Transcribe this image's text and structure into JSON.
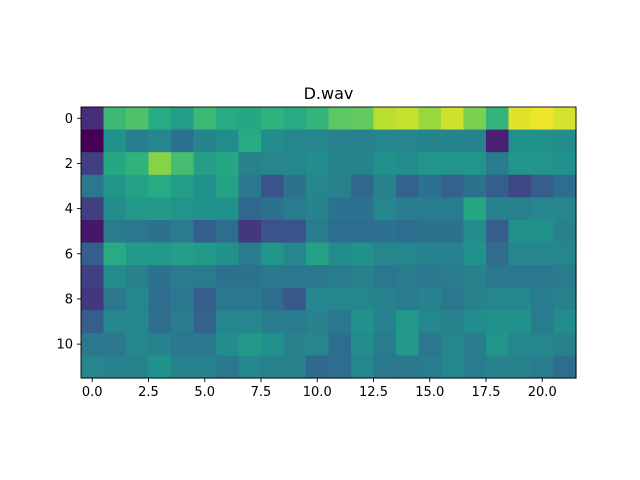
{
  "chart_data": {
    "type": "heatmap",
    "title": "D.wav",
    "xlabel": "",
    "ylabel": "",
    "x_ticks": [
      "0.0",
      "2.5",
      "5.0",
      "7.5",
      "10.0",
      "12.5",
      "15.0",
      "17.5",
      "20.0"
    ],
    "y_ticks": [
      "0",
      "2",
      "4",
      "6",
      "8",
      "10"
    ],
    "xlim": [
      -0.5,
      21.5
    ],
    "ylim": [
      11.5,
      -0.5
    ],
    "colormap": "viridis",
    "vmin": 0,
    "vmax": 1,
    "values": [
      [
        0.15,
        0.68,
        0.72,
        0.62,
        0.55,
        0.68,
        0.62,
        0.6,
        0.65,
        0.62,
        0.66,
        0.75,
        0.76,
        0.9,
        0.92,
        0.85,
        0.93,
        0.8,
        0.66,
        0.96,
        0.98,
        0.94
      ],
      [
        0.0,
        0.5,
        0.42,
        0.46,
        0.38,
        0.45,
        0.48,
        0.62,
        0.48,
        0.46,
        0.46,
        0.44,
        0.44,
        0.46,
        0.46,
        0.45,
        0.45,
        0.44,
        0.12,
        0.5,
        0.5,
        0.48
      ],
      [
        0.2,
        0.6,
        0.65,
        0.82,
        0.7,
        0.56,
        0.6,
        0.44,
        0.46,
        0.46,
        0.48,
        0.45,
        0.45,
        0.5,
        0.48,
        0.52,
        0.52,
        0.52,
        0.42,
        0.52,
        0.52,
        0.5
      ],
      [
        0.4,
        0.52,
        0.58,
        0.62,
        0.56,
        0.5,
        0.58,
        0.4,
        0.26,
        0.38,
        0.46,
        0.44,
        0.34,
        0.44,
        0.32,
        0.38,
        0.32,
        0.38,
        0.3,
        0.22,
        0.3,
        0.36
      ],
      [
        0.2,
        0.48,
        0.54,
        0.54,
        0.52,
        0.5,
        0.5,
        0.34,
        0.38,
        0.42,
        0.44,
        0.38,
        0.38,
        0.46,
        0.42,
        0.42,
        0.42,
        0.6,
        0.44,
        0.44,
        0.46,
        0.46
      ],
      [
        0.08,
        0.42,
        0.4,
        0.38,
        0.42,
        0.3,
        0.36,
        0.18,
        0.26,
        0.26,
        0.42,
        0.36,
        0.36,
        0.38,
        0.36,
        0.38,
        0.38,
        0.48,
        0.3,
        0.5,
        0.5,
        0.44
      ],
      [
        0.3,
        0.62,
        0.54,
        0.54,
        0.56,
        0.54,
        0.5,
        0.42,
        0.52,
        0.46,
        0.58,
        0.48,
        0.5,
        0.46,
        0.46,
        0.44,
        0.44,
        0.5,
        0.36,
        0.46,
        0.46,
        0.46
      ],
      [
        0.2,
        0.48,
        0.44,
        0.38,
        0.42,
        0.42,
        0.38,
        0.38,
        0.4,
        0.4,
        0.4,
        0.42,
        0.44,
        0.4,
        0.42,
        0.4,
        0.42,
        0.44,
        0.4,
        0.4,
        0.4,
        0.42
      ],
      [
        0.18,
        0.4,
        0.46,
        0.36,
        0.4,
        0.3,
        0.4,
        0.4,
        0.36,
        0.28,
        0.46,
        0.46,
        0.46,
        0.44,
        0.42,
        0.44,
        0.4,
        0.44,
        0.46,
        0.46,
        0.42,
        0.44
      ],
      [
        0.3,
        0.46,
        0.46,
        0.36,
        0.42,
        0.32,
        0.46,
        0.46,
        0.42,
        0.42,
        0.44,
        0.4,
        0.5,
        0.44,
        0.54,
        0.46,
        0.44,
        0.48,
        0.5,
        0.5,
        0.42,
        0.48
      ],
      [
        0.4,
        0.4,
        0.46,
        0.44,
        0.4,
        0.4,
        0.48,
        0.54,
        0.5,
        0.44,
        0.46,
        0.36,
        0.48,
        0.42,
        0.54,
        0.4,
        0.46,
        0.42,
        0.52,
        0.46,
        0.46,
        0.44
      ],
      [
        0.46,
        0.44,
        0.44,
        0.5,
        0.44,
        0.44,
        0.4,
        0.46,
        0.44,
        0.44,
        0.34,
        0.36,
        0.46,
        0.4,
        0.4,
        0.42,
        0.46,
        0.42,
        0.44,
        0.44,
        0.42,
        0.36
      ]
    ]
  }
}
